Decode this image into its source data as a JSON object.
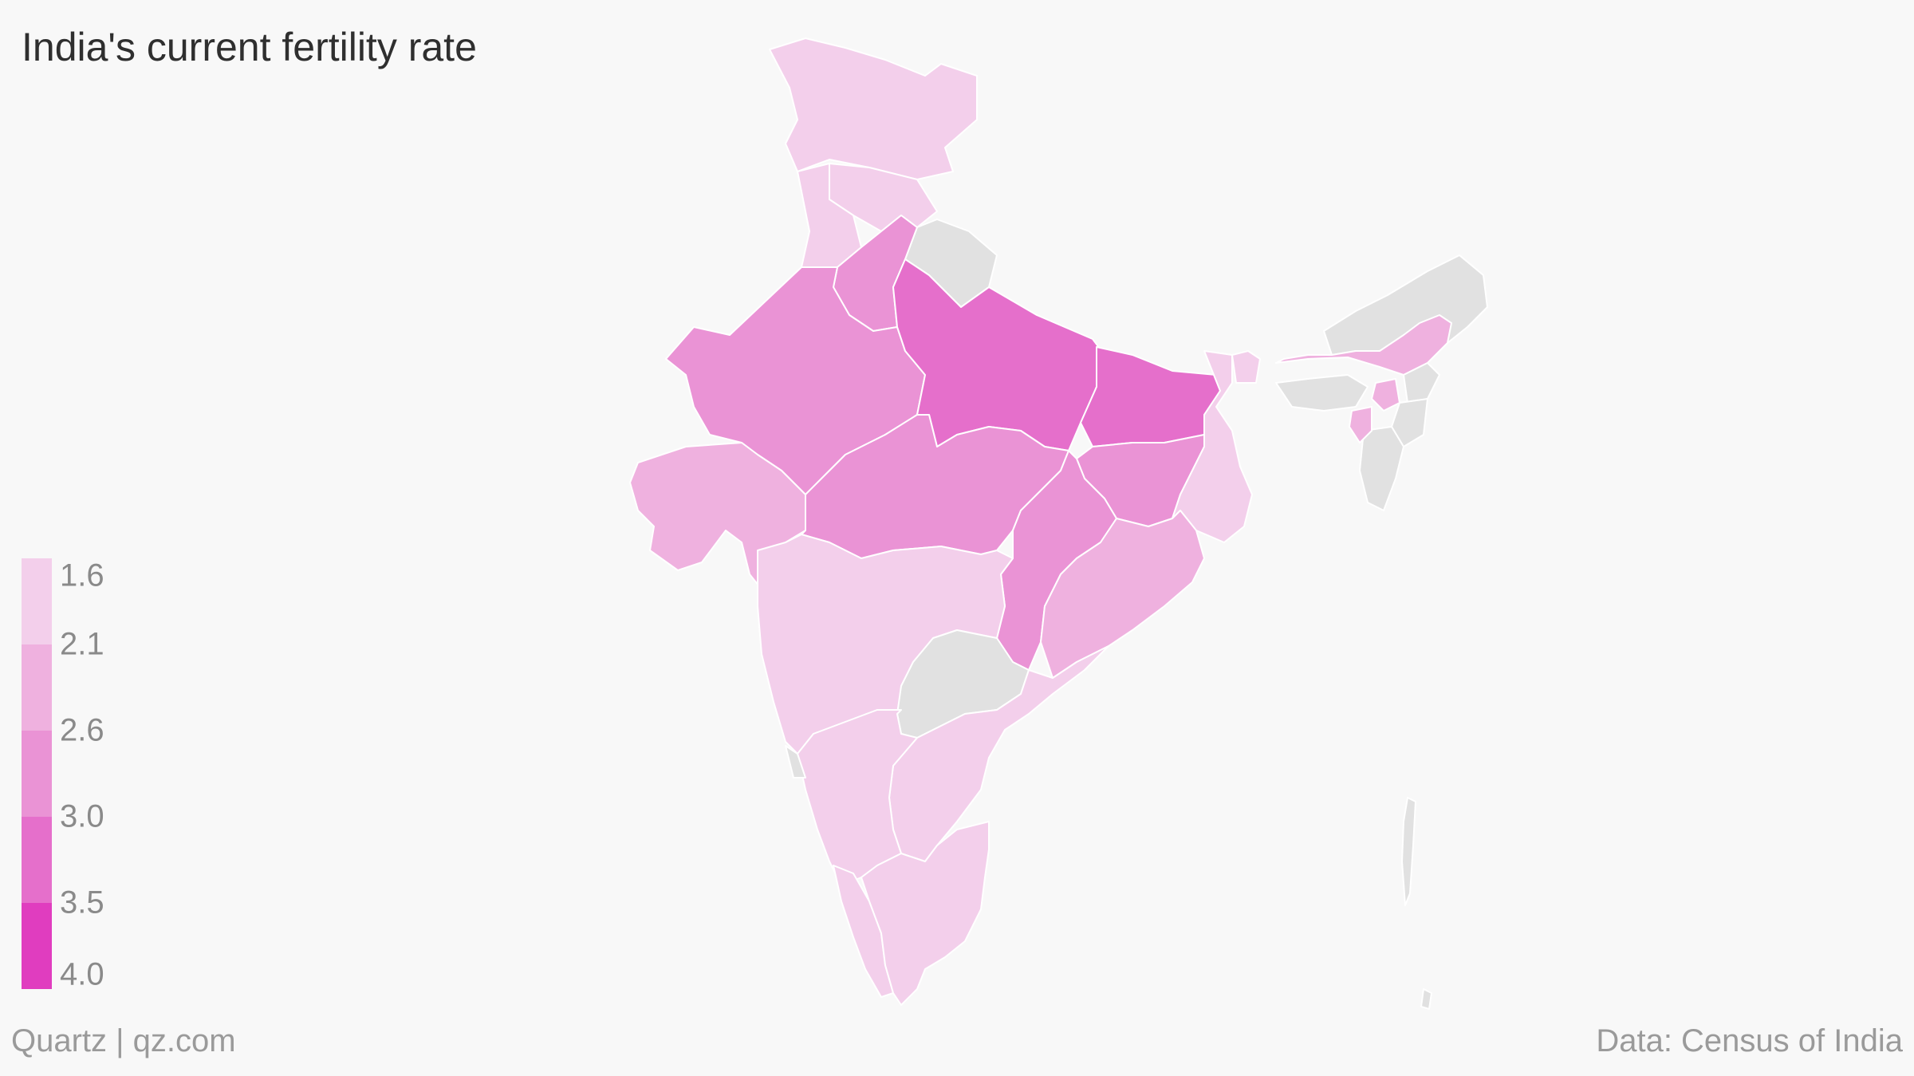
{
  "title": "India's current fertility rate",
  "footer": {
    "brand": "Quartz | qz.com",
    "source": "Data: Census of India"
  },
  "legend": {
    "labels": [
      "1.6",
      "2.1",
      "2.6",
      "3.0",
      "3.5",
      "4.0"
    ],
    "colors": [
      "#f3cfeb",
      "#efb1df",
      "#ea93d5",
      "#e56fcb",
      "#e03dbf"
    ],
    "no_data_color": "#e1e1e1"
  },
  "map": {
    "regions": [
      {
        "name": "Jammu and Kashmir",
        "bin": 0
      },
      {
        "name": "Himachal Pradesh",
        "bin": 0
      },
      {
        "name": "Punjab",
        "bin": 0
      },
      {
        "name": "Uttarakhand",
        "bin": -1
      },
      {
        "name": "Haryana",
        "bin": 2
      },
      {
        "name": "Rajasthan",
        "bin": 2
      },
      {
        "name": "Uttar Pradesh",
        "bin": 3
      },
      {
        "name": "Bihar",
        "bin": 3
      },
      {
        "name": "Gujarat",
        "bin": 1
      },
      {
        "name": "Madhya Pradesh",
        "bin": 2
      },
      {
        "name": "Jharkhand",
        "bin": 2
      },
      {
        "name": "West Bengal",
        "bin": 0
      },
      {
        "name": "Chhattisgarh",
        "bin": 2
      },
      {
        "name": "Odisha",
        "bin": 1
      },
      {
        "name": "Maharashtra",
        "bin": 0
      },
      {
        "name": "Telangana",
        "bin": -1
      },
      {
        "name": "Andhra Pradesh",
        "bin": 0
      },
      {
        "name": "Karnataka",
        "bin": 0
      },
      {
        "name": "Goa",
        "bin": -1
      },
      {
        "name": "Kerala",
        "bin": 0
      },
      {
        "name": "Tamil Nadu",
        "bin": 0
      },
      {
        "name": "Sikkim",
        "bin": 0
      },
      {
        "name": "Arunachal Pradesh",
        "bin": -1
      },
      {
        "name": "Assam",
        "bin": 1
      },
      {
        "name": "Meghalaya",
        "bin": -1
      },
      {
        "name": "Nagaland",
        "bin": -1
      },
      {
        "name": "Manipur",
        "bin": -1
      },
      {
        "name": "Mizoram",
        "bin": -1
      },
      {
        "name": "Tripura",
        "bin": 1
      },
      {
        "name": "Andaman and Nicobar Islands",
        "bin": -1
      }
    ]
  }
}
